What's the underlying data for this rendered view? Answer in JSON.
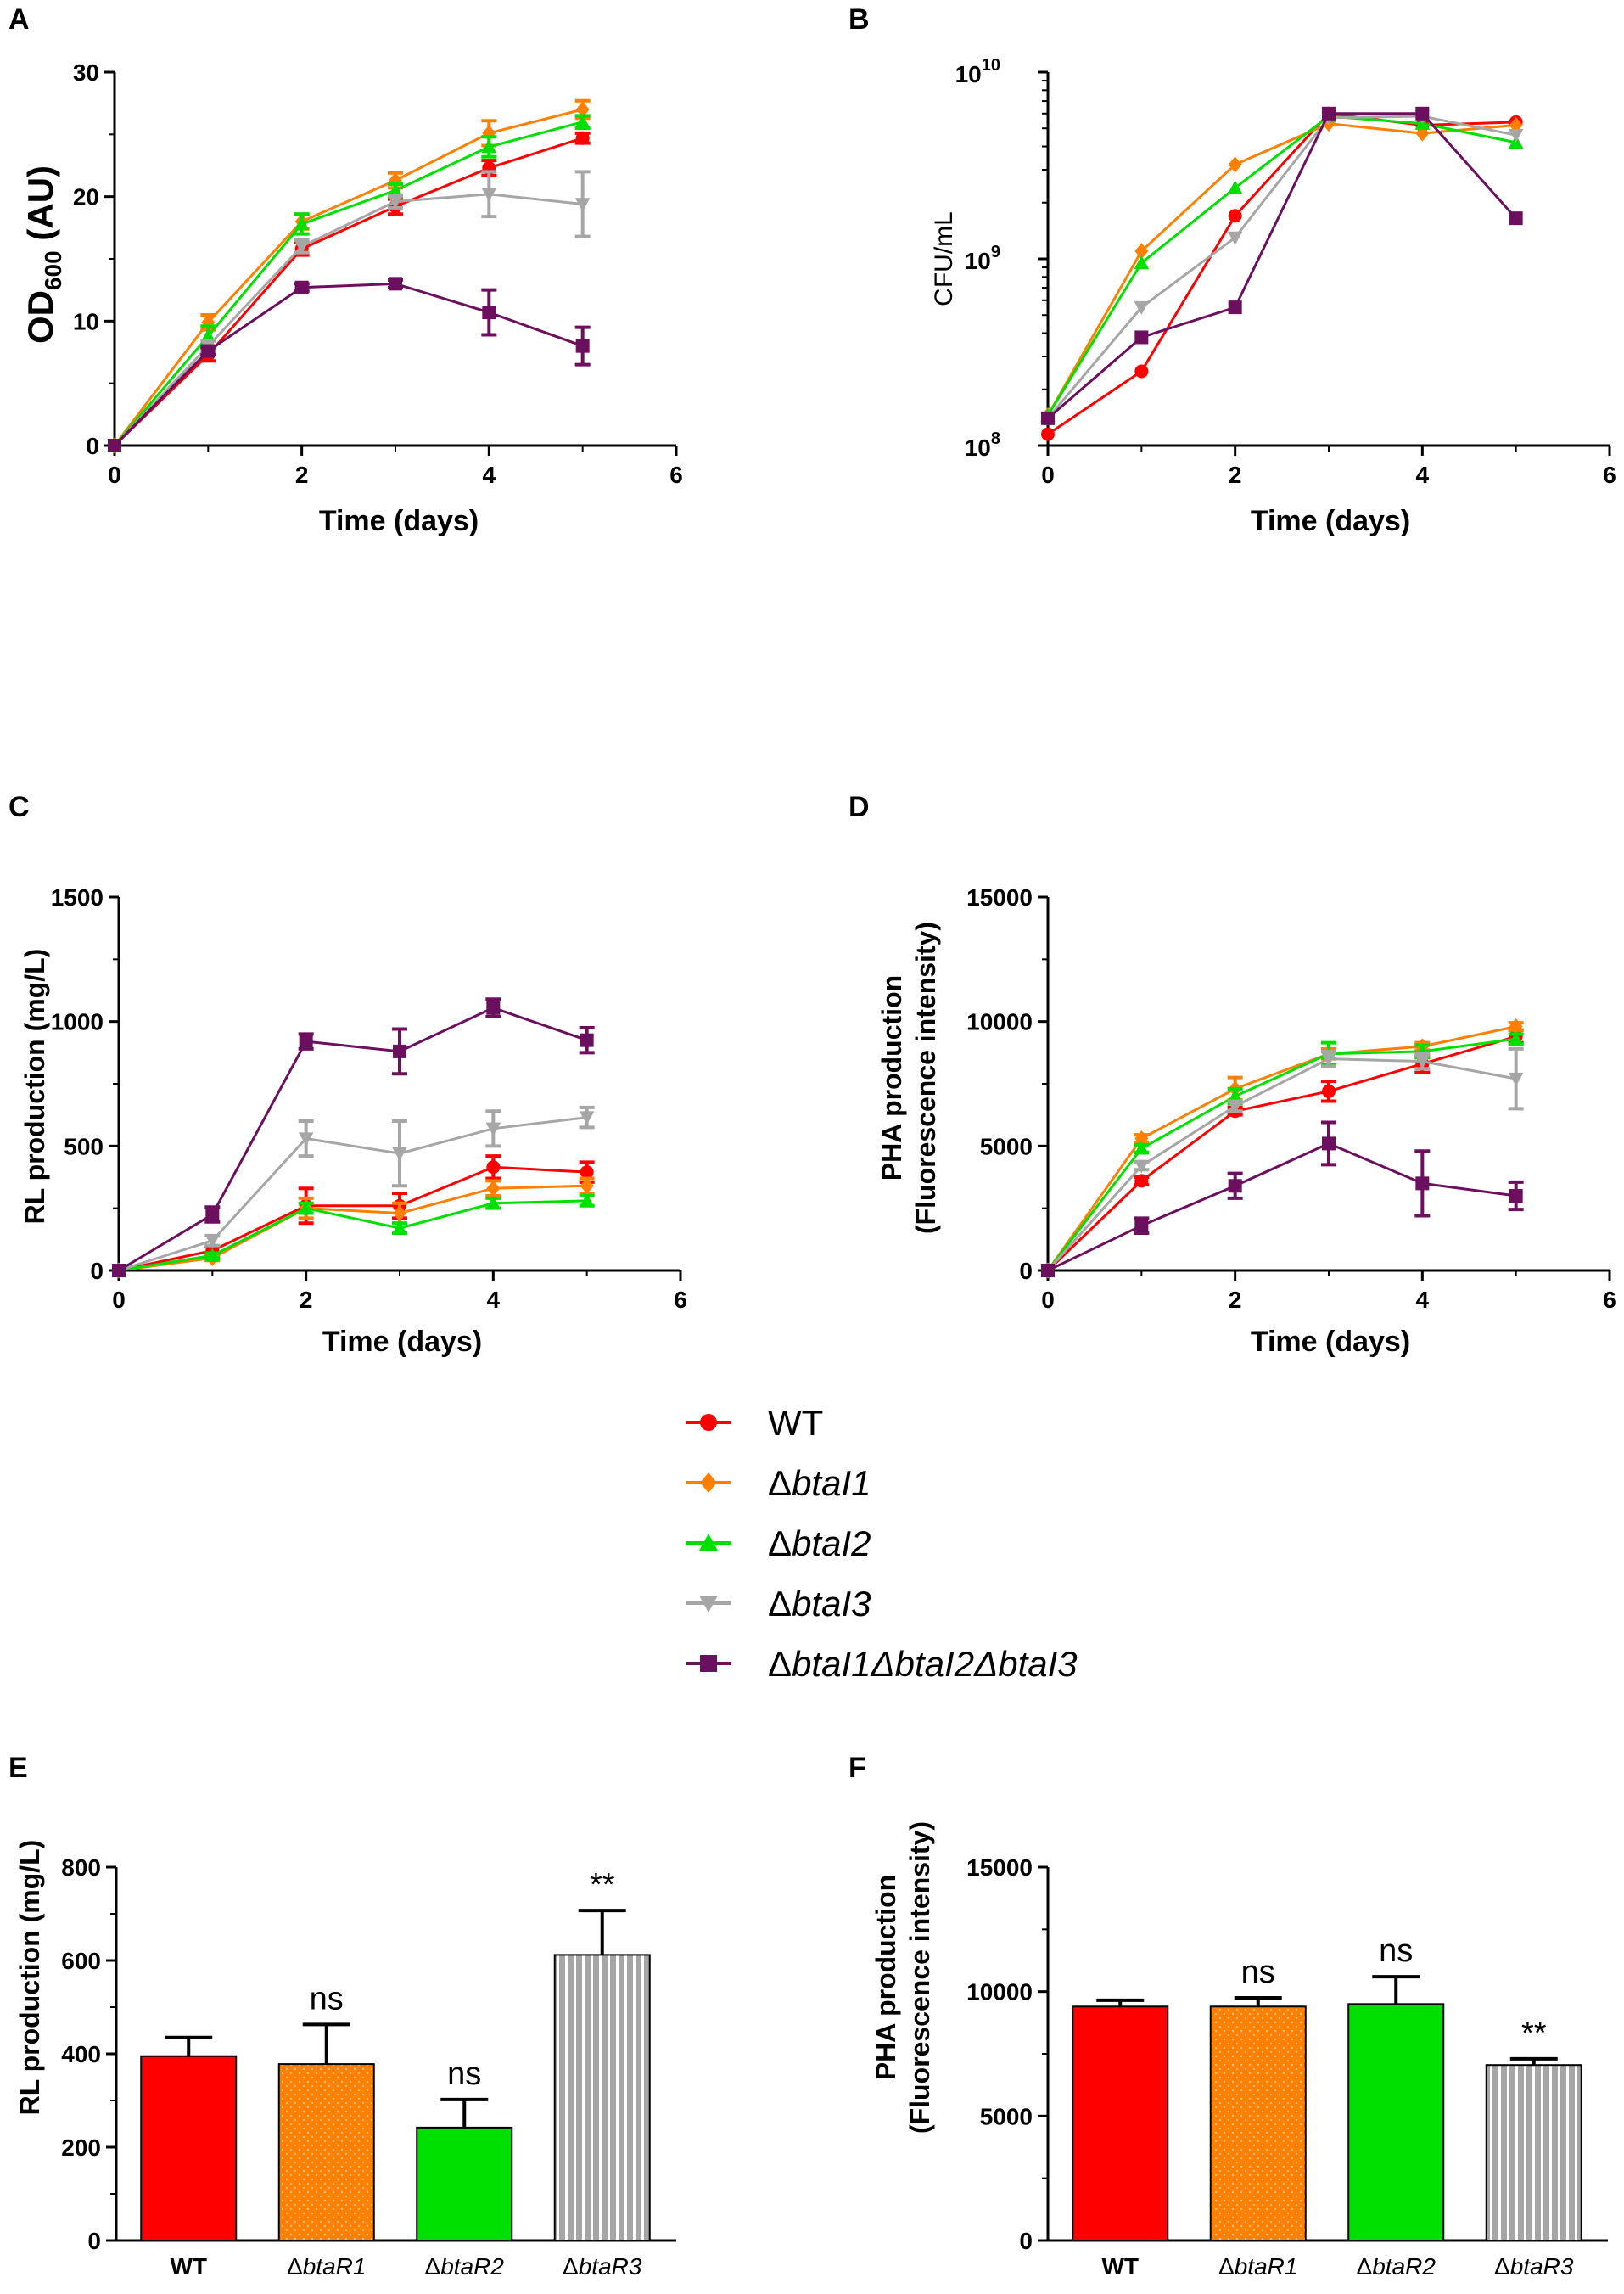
{
  "figure": {
    "panel_letters": [
      "A",
      "B",
      "C",
      "D",
      "E",
      "F"
    ]
  },
  "legend": [
    {
      "key": "WT",
      "label_main": "WT",
      "label_italic": "",
      "color": "#ff0000",
      "marker": "circle"
    },
    {
      "key": "btal1",
      "label_main": "Δ",
      "label_italic": "btaI1",
      "color": "#ff8000",
      "marker": "diamond"
    },
    {
      "key": "btal2",
      "label_main": "Δ",
      "label_italic": "btaI2",
      "color": "#00e000",
      "marker": "triangle-up"
    },
    {
      "key": "btal3",
      "label_main": "Δ",
      "label_italic": "btaI3",
      "color": "#a6a6a6",
      "marker": "triangle-down"
    },
    {
      "key": "triple",
      "label_main": "Δ",
      "label_italic": "btaI1ΔbtaI2ΔbtaI3",
      "color": "#6b0f5e",
      "marker": "square"
    }
  ],
  "chart_data": [
    {
      "id": "A",
      "type": "line",
      "xlabel": "Time (days)",
      "ylabel": "OD600 (AU)",
      "xlim": [
        0,
        6
      ],
      "ylim": [
        0,
        30
      ],
      "xticks": [
        "0",
        "2",
        "4",
        "6"
      ],
      "yticks": [
        "0",
        "10",
        "20",
        "30"
      ],
      "x": [
        0,
        1,
        2,
        3,
        4,
        5
      ],
      "series": [
        {
          "name": "WT",
          "values": [
            0,
            7.3,
            15.8,
            19.2,
            22.3,
            24.7
          ],
          "err": [
            0,
            0.5,
            0.5,
            0.6,
            0.6,
            0.4
          ]
        },
        {
          "name": "ΔbtaI1",
          "values": [
            0,
            9.9,
            18.0,
            21.3,
            25.1,
            27.0
          ],
          "err": [
            0,
            0.6,
            0.6,
            0.6,
            1.0,
            0.7
          ]
        },
        {
          "name": "ΔbtaI2",
          "values": [
            0,
            8.8,
            17.8,
            20.5,
            24.0,
            26.0
          ],
          "err": [
            0,
            0.8,
            0.8,
            0.5,
            0.8,
            0.5
          ]
        },
        {
          "name": "ΔbtaI3",
          "values": [
            0,
            8.0,
            16.0,
            19.6,
            20.2,
            19.4
          ],
          "err": [
            0,
            0.4,
            0.5,
            0.5,
            1.8,
            2.6
          ]
        },
        {
          "name": "ΔbtaI1ΔbtaI2ΔbtaI3",
          "values": [
            0,
            7.6,
            12.7,
            13.0,
            10.7,
            8.0
          ],
          "err": [
            0,
            0.3,
            0.3,
            0.3,
            1.8,
            1.5
          ]
        }
      ]
    },
    {
      "id": "B",
      "type": "line",
      "yscale": "log",
      "xlabel": "Time (days)",
      "ylabel": "CFU/mL",
      "xlim": [
        0,
        6
      ],
      "ylim": [
        100000000,
        10000000000
      ],
      "xticks": [
        "0",
        "2",
        "4",
        "6"
      ],
      "yticks": [
        {
          "base": "10",
          "exp": "8"
        },
        {
          "base": "10",
          "exp": "9"
        },
        {
          "base": "10",
          "exp": "10"
        }
      ],
      "x": [
        0,
        1,
        2,
        3,
        4,
        5
      ],
      "series": [
        {
          "name": "WT",
          "values": [
            115000000,
            250000000,
            1700000000,
            6000000000,
            5200000000,
            5400000000
          ],
          "err": [
            0,
            0,
            0,
            0,
            0,
            0
          ]
        },
        {
          "name": "ΔbtaI1",
          "values": [
            145000000,
            1100000000,
            3200000000,
            5300000000,
            4700000000,
            5200000000
          ],
          "err": [
            0,
            0,
            0,
            0,
            0,
            0
          ]
        },
        {
          "name": "ΔbtaI2",
          "values": [
            145000000,
            950000000,
            2400000000,
            5800000000,
            5300000000,
            4200000000
          ],
          "err": [
            0,
            0,
            0,
            0,
            0,
            0
          ]
        },
        {
          "name": "ΔbtaI3",
          "values": [
            140000000,
            550000000,
            1300000000,
            5700000000,
            5800000000,
            4600000000
          ],
          "err": [
            0,
            0,
            0,
            0,
            0,
            0
          ]
        },
        {
          "name": "ΔbtaI1ΔbtaI2ΔbtaI3",
          "values": [
            140000000,
            380000000,
            550000000,
            6000000000,
            6000000000,
            1650000000
          ],
          "err": [
            0,
            0,
            0,
            0,
            0,
            0
          ]
        }
      ]
    },
    {
      "id": "C",
      "type": "line",
      "xlabel": "Time (days)",
      "ylabel": "RL production (mg/L)",
      "xlim": [
        0,
        6
      ],
      "ylim": [
        0,
        1500
      ],
      "xticks": [
        "0",
        "2",
        "4",
        "6"
      ],
      "yticks": [
        "0",
        "500",
        "1000",
        "1500"
      ],
      "x": [
        0,
        1,
        2,
        3,
        4,
        5
      ],
      "series": [
        {
          "name": "WT",
          "values": [
            0,
            80,
            260,
            260,
            415,
            395
          ],
          "err": [
            0,
            15,
            70,
            50,
            45,
            40
          ]
        },
        {
          "name": "ΔbtaI1",
          "values": [
            0,
            50,
            250,
            230,
            330,
            340
          ],
          "err": [
            0,
            10,
            40,
            40,
            30,
            30
          ]
        },
        {
          "name": "ΔbtaI2",
          "values": [
            0,
            60,
            250,
            170,
            270,
            280
          ],
          "err": [
            0,
            10,
            20,
            20,
            20,
            20
          ]
        },
        {
          "name": "ΔbtaI3",
          "values": [
            0,
            120,
            530,
            470,
            570,
            615
          ],
          "err": [
            0,
            20,
            70,
            130,
            70,
            40
          ]
        },
        {
          "name": "ΔbtaI1ΔbtaI2ΔbtaI3",
          "values": [
            0,
            225,
            920,
            880,
            1055,
            925
          ],
          "err": [
            0,
            30,
            30,
            90,
            35,
            50
          ]
        }
      ]
    },
    {
      "id": "D",
      "type": "line",
      "xlabel": "Time (days)",
      "ylabel_line1": "PHA production",
      "ylabel_line2": "(Fluorescence intensity)",
      "xlim": [
        0,
        6
      ],
      "ylim": [
        0,
        15000
      ],
      "xticks": [
        "0",
        "2",
        "4",
        "6"
      ],
      "yticks": [
        "0",
        "5000",
        "10000",
        "15000"
      ],
      "x": [
        0,
        1,
        2,
        3,
        4,
        5
      ],
      "series": [
        {
          "name": "WT",
          "values": [
            0,
            3600,
            6400,
            7200,
            8300,
            9400
          ],
          "err": [
            0,
            150,
            150,
            400,
            350,
            250
          ]
        },
        {
          "name": "ΔbtaI1",
          "values": [
            0,
            5300,
            7300,
            8700,
            9000,
            9800
          ],
          "err": [
            0,
            150,
            450,
            200,
            150,
            150
          ]
        },
        {
          "name": "ΔbtaI2",
          "values": [
            0,
            4900,
            7000,
            8700,
            8800,
            9300
          ],
          "err": [
            0,
            150,
            300,
            450,
            250,
            200
          ]
        },
        {
          "name": "ΔbtaI3",
          "values": [
            0,
            4200,
            6600,
            8500,
            8400,
            7700
          ],
          "err": [
            0,
            150,
            200,
            300,
            300,
            1200
          ]
        },
        {
          "name": "ΔbtaI1ΔbtaI2ΔbtaI3",
          "values": [
            0,
            1800,
            3400,
            5100,
            3500,
            3000
          ],
          "err": [
            0,
            300,
            500,
            850,
            1300,
            550
          ]
        }
      ]
    },
    {
      "id": "E",
      "type": "bar",
      "ylabel": "RL production (mg/L)",
      "ylim": [
        0,
        800
      ],
      "yticks": [
        "0",
        "200",
        "400",
        "600",
        "800"
      ],
      "categories": [
        "WT",
        "ΔbtaR1",
        "ΔbtaR2",
        "ΔbtaR3"
      ],
      "values": [
        395,
        378,
        242,
        612
      ],
      "err": [
        40,
        85,
        60,
        95
      ],
      "significance": [
        "",
        "ns",
        "ns",
        "**"
      ],
      "colors": [
        "#ff0000",
        "#ff8000",
        "#00e000",
        "#a6a6a6"
      ]
    },
    {
      "id": "F",
      "type": "bar",
      "ylabel_line1": "PHA production",
      "ylabel_line2": "(Fluorescence intensity)",
      "ylim": [
        0,
        15000
      ],
      "yticks": [
        "0",
        "5000",
        "10000",
        "15000"
      ],
      "categories": [
        "WT",
        "ΔbtaR1",
        "ΔbtaR2",
        "ΔbtaR3"
      ],
      "values": [
        9400,
        9400,
        9500,
        7050
      ],
      "err": [
        250,
        350,
        1100,
        250
      ],
      "significance": [
        "",
        "ns",
        "ns",
        "**"
      ],
      "colors": [
        "#ff0000",
        "#ff8000",
        "#00e000",
        "#a6a6a6"
      ]
    }
  ]
}
